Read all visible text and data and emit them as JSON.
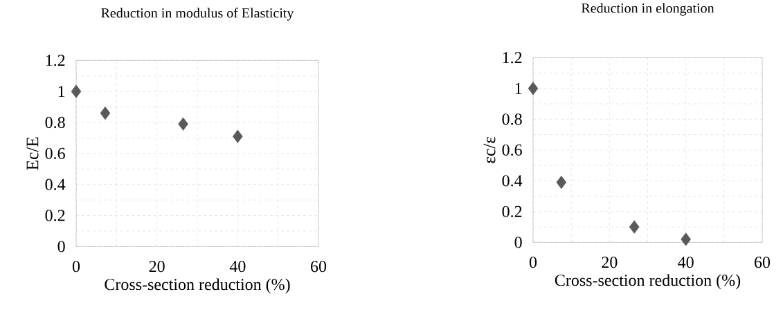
{
  "chart_data": [
    {
      "type": "scatter",
      "title": "Reduction in modulus of Elasticity",
      "xlabel": "Cross-section reduction (%)",
      "ylabel": "Ec/E",
      "x": [
        0,
        7.2,
        26.5,
        40
      ],
      "values": [
        1,
        0.86,
        0.79,
        0.71
      ],
      "color": "#595959",
      "marker": "diamond",
      "grid": true,
      "xlim": [
        0,
        60
      ],
      "xticks": [
        0,
        20,
        40,
        60
      ],
      "ylim": [
        0,
        1.2
      ],
      "yticks": [
        0,
        0.2,
        0.4,
        0.6,
        0.8,
        1,
        1.2
      ]
    },
    {
      "type": "scatter",
      "title": "Reduction in elongation",
      "xlabel": "Cross-section reduction (%)",
      "ylabel": "εc/ε",
      "x": [
        0,
        7.4,
        26.5,
        40
      ],
      "values": [
        1,
        0.39,
        0.1,
        0.02
      ],
      "color": "#595959",
      "marker": "diamond",
      "grid": true,
      "xlim": [
        0,
        60
      ],
      "xticks": [
        0,
        20,
        40,
        60
      ],
      "ylim": [
        0,
        1.2
      ],
      "yticks": [
        0,
        0.2,
        0.4,
        0.6,
        0.8,
        1,
        1.2
      ]
    }
  ]
}
